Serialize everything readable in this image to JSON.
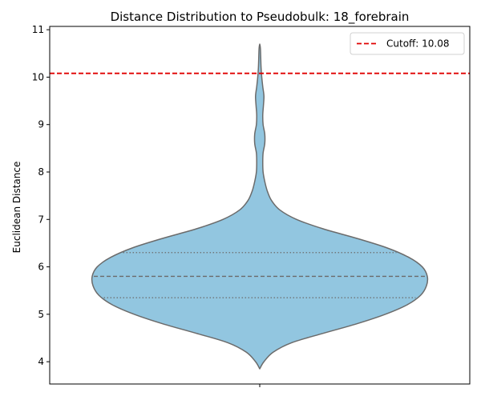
{
  "chart_data": {
    "type": "violin",
    "title": "Distance Distribution to Pseudobulk: 18_forebrain",
    "xlabel": "",
    "ylabel": "Euclidean Distance",
    "ylim": [
      3.53,
      11.07
    ],
    "yticks": [
      "4",
      "5",
      "6",
      "7",
      "8",
      "9",
      "10",
      "11"
    ],
    "violin": {
      "color": "#92c6e0",
      "edge_color": "#6b6b6b",
      "min": 3.85,
      "max": 10.7,
      "median": 5.8,
      "q1": 5.35,
      "q3": 6.3,
      "density_profile": [
        [
          3.85,
          0.0
        ],
        [
          4.0,
          0.025
        ],
        [
          4.2,
          0.08
        ],
        [
          4.4,
          0.19
        ],
        [
          4.6,
          0.38
        ],
        [
          4.8,
          0.58
        ],
        [
          5.0,
          0.75
        ],
        [
          5.2,
          0.88
        ],
        [
          5.4,
          0.96
        ],
        [
          5.6,
          0.995
        ],
        [
          5.8,
          1.0
        ],
        [
          6.0,
          0.97
        ],
        [
          6.2,
          0.89
        ],
        [
          6.4,
          0.76
        ],
        [
          6.6,
          0.58
        ],
        [
          6.8,
          0.38
        ],
        [
          7.0,
          0.22
        ],
        [
          7.2,
          0.12
        ],
        [
          7.4,
          0.07
        ],
        [
          7.6,
          0.045
        ],
        [
          7.8,
          0.03
        ],
        [
          8.0,
          0.02
        ],
        [
          8.2,
          0.018
        ],
        [
          8.4,
          0.02
        ],
        [
          8.6,
          0.03
        ],
        [
          8.8,
          0.03
        ],
        [
          9.0,
          0.02
        ],
        [
          9.2,
          0.018
        ],
        [
          9.4,
          0.022
        ],
        [
          9.6,
          0.025
        ],
        [
          9.8,
          0.018
        ],
        [
          10.0,
          0.012
        ],
        [
          10.2,
          0.008
        ],
        [
          10.4,
          0.006
        ],
        [
          10.6,
          0.004
        ],
        [
          10.7,
          0.0
        ]
      ]
    },
    "reference_line": {
      "y": 10.08,
      "label": "Cutoff: 10.08",
      "color": "#e00000",
      "style": "dashed"
    },
    "legend_position": "top-right",
    "grid": false
  }
}
